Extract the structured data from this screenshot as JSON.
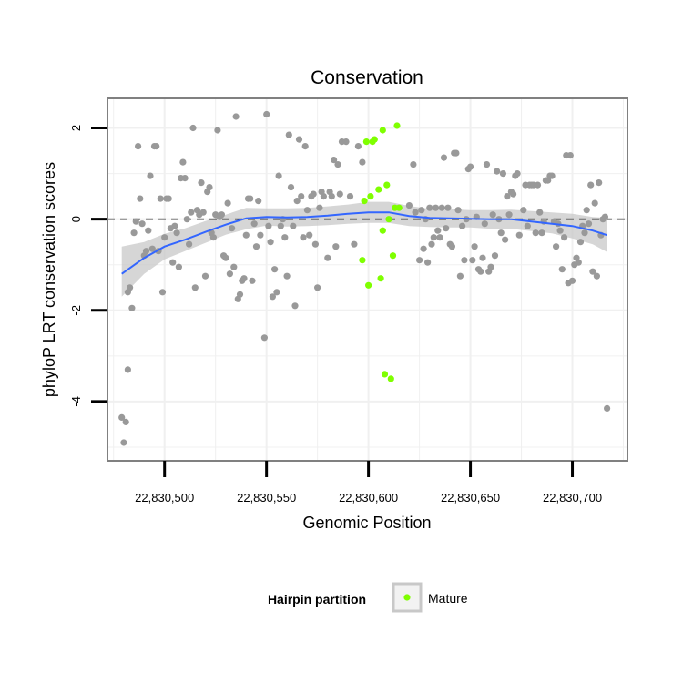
{
  "chart_data": {
    "type": "scatter",
    "title": "Conservation",
    "xlabel": "Genomic Position",
    "ylabel": "phyloP LRT conservation scores",
    "xlim": [
      22830472,
      22830727
    ],
    "ylim": [
      -5.3,
      2.65
    ],
    "x_ticks": [
      22830500,
      22830550,
      22830600,
      22830650,
      22830700
    ],
    "x_tick_labels": [
      "22,830,500",
      "22,830,550",
      "22,830,600",
      "22,830,650",
      "22,830,700"
    ],
    "y_ticks": [
      -4,
      -2,
      0,
      2
    ],
    "y_tick_labels": [
      "-4",
      "-2",
      "0",
      "2"
    ],
    "reference_line": {
      "y": 0,
      "style": "dashed"
    },
    "grid": true,
    "legend": {
      "title": "Hairpin partition",
      "placement": "bottom",
      "entries": [
        {
          "label": "Mature",
          "color": "#7fff00"
        }
      ]
    },
    "colors": {
      "other": "#999999",
      "mature": "#7fff00",
      "smooth": "#3366ff",
      "ribbon": "#c8c8c8"
    },
    "series": [
      {
        "group": "other",
        "points": [
          [
            22830479,
            -4.35
          ],
          [
            22830480,
            -4.9
          ],
          [
            22830481,
            -4.45
          ],
          [
            22830482,
            -3.3
          ],
          [
            22830482,
            -1.6
          ],
          [
            22830483,
            -1.5
          ],
          [
            22830484,
            -1.95
          ],
          [
            22830485,
            -0.3
          ],
          [
            22830486,
            -0.05
          ],
          [
            22830487,
            1.6
          ],
          [
            22830488,
            0.45
          ],
          [
            22830489,
            -0.1
          ],
          [
            22830490,
            -0.8
          ],
          [
            22830491,
            -0.7
          ],
          [
            22830492,
            -0.25
          ],
          [
            22830493,
            0.95
          ],
          [
            22830494,
            -0.65
          ],
          [
            22830495,
            1.6
          ],
          [
            22830496,
            1.6
          ],
          [
            22830497,
            -0.7
          ],
          [
            22830498,
            0.45
          ],
          [
            22830499,
            -1.6
          ],
          [
            22830500,
            -0.4
          ],
          [
            22830501,
            0.45
          ],
          [
            22830502,
            0.45
          ],
          [
            22830503,
            -0.2
          ],
          [
            22830504,
            -0.95
          ],
          [
            22830505,
            -0.15
          ],
          [
            22830506,
            -0.3
          ],
          [
            22830507,
            -1.05
          ],
          [
            22830508,
            0.9
          ],
          [
            22830509,
            1.25
          ],
          [
            22830510,
            0.9
          ],
          [
            22830511,
            0.0
          ],
          [
            22830512,
            -0.55
          ],
          [
            22830513,
            0.15
          ],
          [
            22830514,
            2.0
          ],
          [
            22830515,
            -1.5
          ],
          [
            22830516,
            0.2
          ],
          [
            22830517,
            0.1
          ],
          [
            22830518,
            0.8
          ],
          [
            22830519,
            0.15
          ],
          [
            22830520,
            -1.25
          ],
          [
            22830521,
            0.6
          ],
          [
            22830522,
            0.7
          ],
          [
            22830523,
            -0.3
          ],
          [
            22830524,
            -0.4
          ],
          [
            22830525,
            0.1
          ],
          [
            22830526,
            1.95
          ],
          [
            22830527,
            0.05
          ],
          [
            22830528,
            0.1
          ],
          [
            22830529,
            -0.8
          ],
          [
            22830530,
            -0.85
          ],
          [
            22830531,
            0.35
          ],
          [
            22830532,
            -1.2
          ],
          [
            22830533,
            -0.2
          ],
          [
            22830534,
            -1.05
          ],
          [
            22830535,
            2.25
          ],
          [
            22830536,
            -1.75
          ],
          [
            22830537,
            -1.65
          ],
          [
            22830538,
            -1.35
          ],
          [
            22830539,
            -1.3
          ],
          [
            22830540,
            -0.35
          ],
          [
            22830541,
            0.45
          ],
          [
            22830542,
            0.45
          ],
          [
            22830543,
            -1.35
          ],
          [
            22830544,
            -0.1
          ],
          [
            22830545,
            -0.6
          ],
          [
            22830546,
            0.4
          ],
          [
            22830547,
            -0.35
          ],
          [
            22830549,
            -2.6
          ],
          [
            22830550,
            2.3
          ],
          [
            22830551,
            -0.15
          ],
          [
            22830552,
            -0.5
          ],
          [
            22830553,
            -1.7
          ],
          [
            22830554,
            -1.1
          ],
          [
            22830555,
            -1.6
          ],
          [
            22830556,
            0.95
          ],
          [
            22830557,
            -0.15
          ],
          [
            22830558,
            0.0
          ],
          [
            22830559,
            -0.4
          ],
          [
            22830560,
            -1.25
          ],
          [
            22830561,
            1.85
          ],
          [
            22830562,
            0.7
          ],
          [
            22830563,
            -0.15
          ],
          [
            22830564,
            -1.9
          ],
          [
            22830565,
            0.4
          ],
          [
            22830566,
            1.75
          ],
          [
            22830567,
            0.5
          ],
          [
            22830568,
            -0.4
          ],
          [
            22830569,
            1.6
          ],
          [
            22830570,
            0.2
          ],
          [
            22830571,
            -0.35
          ],
          [
            22830572,
            0.5
          ],
          [
            22830573,
            0.55
          ],
          [
            22830574,
            -0.55
          ],
          [
            22830575,
            -1.5
          ],
          [
            22830576,
            0.25
          ],
          [
            22830577,
            0.6
          ],
          [
            22830578,
            0.5
          ],
          [
            22830580,
            -0.85
          ],
          [
            22830581,
            0.6
          ],
          [
            22830582,
            0.5
          ],
          [
            22830583,
            1.3
          ],
          [
            22830584,
            -0.6
          ],
          [
            22830585,
            1.2
          ],
          [
            22830586,
            0.55
          ],
          [
            22830587,
            1.7
          ],
          [
            22830589,
            1.7
          ],
          [
            22830591,
            0.5
          ],
          [
            22830593,
            -0.55
          ],
          [
            22830595,
            1.6
          ],
          [
            22830597,
            1.25
          ],
          [
            22830620,
            0.3
          ],
          [
            22830622,
            1.2
          ],
          [
            22830623,
            0.15
          ],
          [
            22830625,
            -0.9
          ],
          [
            22830626,
            0.2
          ],
          [
            22830627,
            -0.65
          ],
          [
            22830628,
            0.0
          ],
          [
            22830629,
            -0.95
          ],
          [
            22830630,
            0.25
          ],
          [
            22830631,
            -0.55
          ],
          [
            22830632,
            -0.4
          ],
          [
            22830633,
            0.25
          ],
          [
            22830634,
            -0.25
          ],
          [
            22830635,
            -0.4
          ],
          [
            22830636,
            0.25
          ],
          [
            22830637,
            1.35
          ],
          [
            22830638,
            -0.2
          ],
          [
            22830639,
            0.25
          ],
          [
            22830640,
            -0.55
          ],
          [
            22830641,
            -0.6
          ],
          [
            22830642,
            1.45
          ],
          [
            22830643,
            1.45
          ],
          [
            22830644,
            0.2
          ],
          [
            22830645,
            -1.25
          ],
          [
            22830646,
            -0.15
          ],
          [
            22830647,
            -0.9
          ],
          [
            22830648,
            0.0
          ],
          [
            22830649,
            1.1
          ],
          [
            22830650,
            1.15
          ],
          [
            22830651,
            -0.9
          ],
          [
            22830652,
            -0.6
          ],
          [
            22830653,
            0.05
          ],
          [
            22830654,
            -1.1
          ],
          [
            22830655,
            -1.15
          ],
          [
            22830656,
            -0.85
          ],
          [
            22830657,
            -0.1
          ],
          [
            22830658,
            1.2
          ],
          [
            22830659,
            -1.15
          ],
          [
            22830660,
            -1.05
          ],
          [
            22830661,
            0.1
          ],
          [
            22830662,
            -0.8
          ],
          [
            22830663,
            1.05
          ],
          [
            22830664,
            0.0
          ],
          [
            22830665,
            -0.3
          ],
          [
            22830666,
            1.0
          ],
          [
            22830667,
            -0.45
          ],
          [
            22830668,
            0.5
          ],
          [
            22830669,
            0.1
          ],
          [
            22830670,
            0.6
          ],
          [
            22830671,
            0.55
          ],
          [
            22830672,
            0.95
          ],
          [
            22830673,
            1.0
          ],
          [
            22830674,
            -0.35
          ],
          [
            22830676,
            0.2
          ],
          [
            22830677,
            0.75
          ],
          [
            22830678,
            -0.15
          ],
          [
            22830679,
            0.75
          ],
          [
            22830680,
            0.75
          ],
          [
            22830681,
            0.75
          ],
          [
            22830682,
            -0.3
          ],
          [
            22830683,
            0.75
          ],
          [
            22830684,
            0.15
          ],
          [
            22830685,
            -0.3
          ],
          [
            22830686,
            -0.05
          ],
          [
            22830687,
            0.85
          ],
          [
            22830688,
            0.85
          ],
          [
            22830689,
            0.95
          ],
          [
            22830690,
            0.95
          ],
          [
            22830691,
            -0.05
          ],
          [
            22830692,
            -0.6
          ],
          [
            22830693,
            -0.1
          ],
          [
            22830694,
            -0.25
          ],
          [
            22830695,
            -1.1
          ],
          [
            22830696,
            -0.4
          ],
          [
            22830697,
            1.4
          ],
          [
            22830698,
            -1.4
          ],
          [
            22830699,
            1.4
          ],
          [
            22830700,
            -1.35
          ],
          [
            22830701,
            -1.0
          ],
          [
            22830702,
            -0.85
          ],
          [
            22830703,
            -0.95
          ],
          [
            22830704,
            -0.5
          ],
          [
            22830705,
            -0.15
          ],
          [
            22830706,
            -0.3
          ],
          [
            22830707,
            0.2
          ],
          [
            22830708,
            -0.1
          ],
          [
            22830709,
            0.75
          ],
          [
            22830710,
            -1.15
          ],
          [
            22830711,
            0.35
          ],
          [
            22830712,
            -1.25
          ],
          [
            22830713,
            0.8
          ],
          [
            22830714,
            -0.35
          ],
          [
            22830715,
            0.0
          ],
          [
            22830716,
            0.05
          ],
          [
            22830717,
            -4.15
          ]
        ]
      },
      {
        "group": "mature",
        "name": "Mature",
        "points": [
          [
            22830597,
            -0.9
          ],
          [
            22830598,
            0.4
          ],
          [
            22830599,
            1.7
          ],
          [
            22830600,
            -1.45
          ],
          [
            22830601,
            0.5
          ],
          [
            22830602,
            1.7
          ],
          [
            22830603,
            1.75
          ],
          [
            22830605,
            0.65
          ],
          [
            22830606,
            -1.3
          ],
          [
            22830607,
            1.95
          ],
          [
            22830607,
            -0.25
          ],
          [
            22830608,
            -3.4
          ],
          [
            22830609,
            0.75
          ],
          [
            22830610,
            0.0
          ],
          [
            22830611,
            -3.5
          ],
          [
            22830612,
            -0.8
          ],
          [
            22830613,
            0.25
          ],
          [
            22830614,
            2.05
          ],
          [
            22830615,
            0.25
          ]
        ]
      }
    ],
    "smooth": {
      "x": [
        22830479,
        22830490,
        22830500,
        22830510,
        22830520,
        22830530,
        22830540,
        22830550,
        22830560,
        22830570,
        22830580,
        22830590,
        22830600,
        22830610,
        22830620,
        22830630,
        22830640,
        22830650,
        22830660,
        22830670,
        22830680,
        22830690,
        22830700,
        22830710,
        22830717
      ],
      "y": [
        -1.2,
        -0.85,
        -0.6,
        -0.45,
        -0.28,
        -0.12,
        0.02,
        0.05,
        0.04,
        0.05,
        0.08,
        0.12,
        0.15,
        0.15,
        0.07,
        0.03,
        0.02,
        0.01,
        0.0,
        0.0,
        -0.05,
        -0.1,
        -0.15,
        -0.25,
        -0.35
      ],
      "lower": [
        -1.7,
        -1.2,
        -0.88,
        -0.7,
        -0.52,
        -0.34,
        -0.22,
        -0.14,
        -0.16,
        -0.15,
        -0.13,
        -0.1,
        -0.08,
        -0.08,
        -0.15,
        -0.17,
        -0.18,
        -0.18,
        -0.21,
        -0.21,
        -0.26,
        -0.31,
        -0.42,
        -0.55,
        -0.72
      ],
      "upper": [
        -0.6,
        -0.5,
        -0.32,
        -0.2,
        -0.04,
        0.1,
        0.25,
        0.24,
        0.24,
        0.25,
        0.28,
        0.32,
        0.38,
        0.38,
        0.29,
        0.23,
        0.22,
        0.2,
        0.2,
        0.21,
        0.18,
        0.15,
        0.12,
        0.05,
        0.03
      ]
    }
  }
}
